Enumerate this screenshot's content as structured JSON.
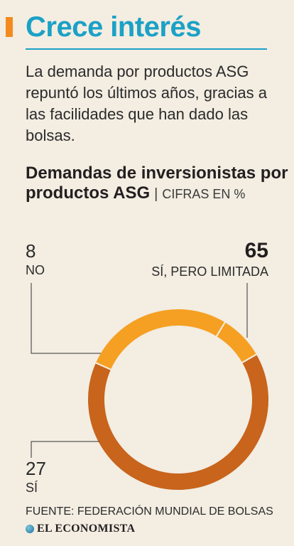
{
  "header": {
    "title": "Crece interés",
    "subtitle": "La demanda por productos ASG repuntó los últimos años, gracias a las facilidades que han dado las bolsas."
  },
  "chart_heading": {
    "title": "Demandas de inversionistas por productos ASG",
    "separator": "|",
    "units": "CIFRAS EN %"
  },
  "chart_data": {
    "type": "pie",
    "title": "Demandas de inversionistas por productos ASG",
    "unit": "CIFRAS EN %",
    "categories": [
      "SÍ, PERO LIMITADA",
      "SÍ",
      "NO"
    ],
    "values": [
      65,
      27,
      8
    ],
    "colors": [
      "#c8641c",
      "#f5a023",
      "#f5a023"
    ]
  },
  "labels": {
    "no": {
      "value": "8",
      "category": "NO"
    },
    "limited": {
      "value": "65",
      "category": "SÍ, PERO LIMITADA"
    },
    "yes": {
      "value": "27",
      "category": "SÍ"
    }
  },
  "footer": {
    "source": "FUENTE: FEDERACIÓN MUNDIAL DE BOLSAS",
    "brand": "EL ECONOMISTA",
    "brand_icon": "globe-icon"
  },
  "colors": {
    "accent": "#f28c1e",
    "title": "#1ba1c6",
    "background": "#f3ede2"
  }
}
